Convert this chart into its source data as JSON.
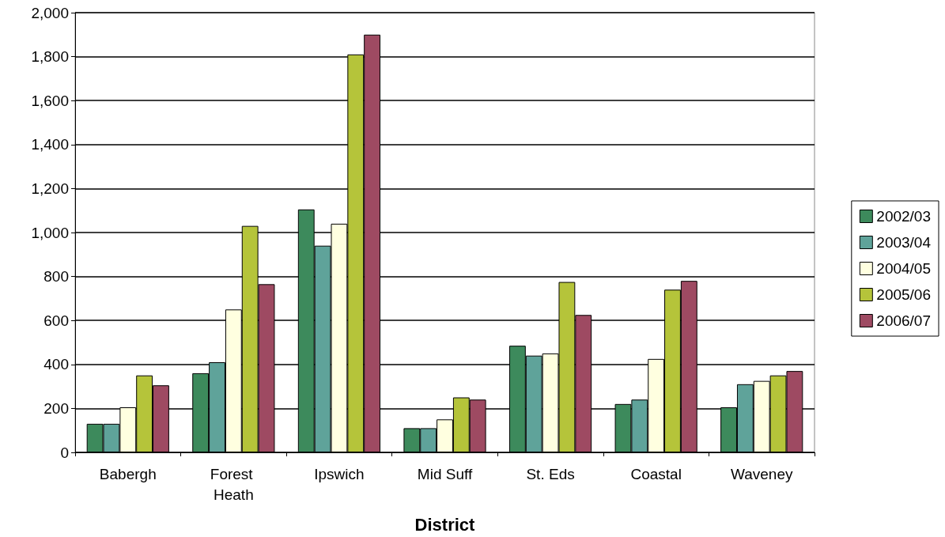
{
  "chart_data": {
    "type": "bar",
    "xlabel": "District",
    "categories": [
      "Babergh",
      "Forest Heath",
      "Ipswich",
      "Mid Suff",
      "St. Eds",
      "Coastal",
      "Waveney"
    ],
    "series": [
      {
        "name": "2002/03",
        "color": "#3d8a5c",
        "values": [
          130,
          360,
          1105,
          110,
          485,
          220,
          205
        ]
      },
      {
        "name": "2003/04",
        "color": "#5fa39a",
        "values": [
          130,
          410,
          940,
          110,
          440,
          240,
          310
        ]
      },
      {
        "name": "2004/05",
        "color": "#ffffe0",
        "values": [
          205,
          650,
          1040,
          150,
          450,
          425,
          325
        ]
      },
      {
        "name": "2005/06",
        "color": "#b5c43a",
        "values": [
          350,
          1030,
          1810,
          250,
          775,
          740,
          350
        ]
      },
      {
        "name": "2006/07",
        "color": "#9e4a62",
        "values": [
          305,
          765,
          1900,
          240,
          625,
          780,
          370
        ]
      }
    ],
    "ylim": [
      0,
      2000
    ],
    "yticks": [
      0,
      200,
      400,
      600,
      800,
      {
        "value": 1000,
        "label": "1,000"
      },
      {
        "value": 1200,
        "label": "1,200"
      },
      {
        "value": 1400,
        "label": "1,400"
      },
      {
        "value": 1600,
        "label": "1,600"
      },
      {
        "value": 1800,
        "label": "1,800"
      },
      {
        "value": 2000,
        "label": "2,000"
      }
    ],
    "grid": "y",
    "legend": "right"
  }
}
